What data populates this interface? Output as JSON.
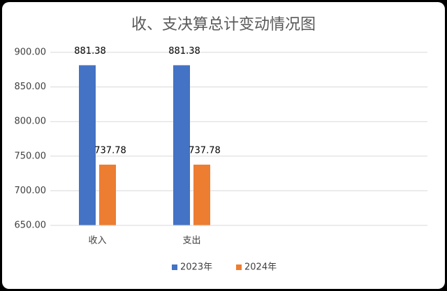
{
  "chart_data": {
    "type": "bar",
    "title": "收、支决算总计变动情况图",
    "categories": [
      "收入",
      "支出",
      null,
      null
    ],
    "series": [
      {
        "name": "2023年",
        "color": "#4472c4",
        "values": [
          881.38,
          881.38,
          null,
          null
        ]
      },
      {
        "name": "2024年",
        "color": "#ed7d31",
        "values": [
          737.78,
          737.78,
          null,
          null
        ]
      }
    ],
    "ylim": [
      650,
      900
    ],
    "yticks": [
      {
        "value": 650,
        "label": "650.00"
      },
      {
        "value": 700,
        "label": "700.00"
      },
      {
        "value": 750,
        "label": "750.00"
      },
      {
        "value": 800,
        "label": "800.00"
      },
      {
        "value": 850,
        "label": "850.00"
      },
      {
        "value": 900,
        "label": "900.00"
      }
    ],
    "grid": true,
    "legend": "bottom"
  }
}
